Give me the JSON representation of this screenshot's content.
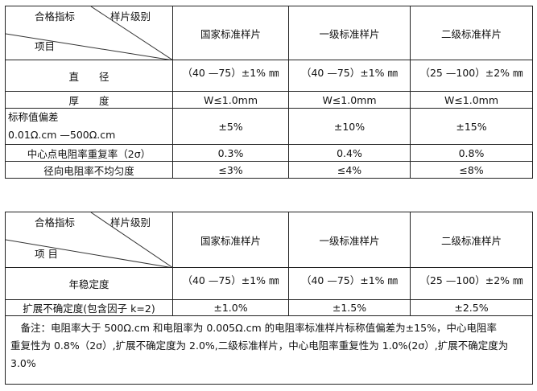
{
  "table1": {
    "header": {
      "top_left": "合格指标",
      "top_right": "样片级别",
      "bottom_left": "项目",
      "columns": [
        "国家标准样片",
        "一级标准样片",
        "二级标准样片"
      ]
    },
    "rows": [
      {
        "label": "直　　径",
        "values": [
          "（40 —75）±1% ㎜",
          "（40 —75）±1% ㎜",
          "（25 —100）±2% ㎜"
        ]
      },
      {
        "label": "厚　　度",
        "values": [
          "W≤1.0mm",
          "W≤1.0mm",
          "W≤1.0mm"
        ]
      },
      {
        "label": "标称值偏差",
        "label2": "0.01Ω.cm —500Ω.cm",
        "values": [
          "±5%",
          "±10%",
          "±15%"
        ]
      },
      {
        "label": "中心点电阻率重复率（2σ）",
        "values": [
          "0.3%",
          "0.4%",
          "0.8%"
        ]
      },
      {
        "label": "径向电阻率不均匀度",
        "values": [
          "≤3%",
          "≤4%",
          "≤8%"
        ]
      }
    ]
  },
  "table2": {
    "header": {
      "top_left": "合格指标",
      "top_right": "样片级别",
      "bottom_left": "项 目",
      "columns": [
        "国家标准样片",
        "一级标准样片",
        "二级标准样片"
      ]
    },
    "rows": [
      {
        "label": "年稳定度",
        "values": [
          "（40 —75）±1% ㎜",
          "（40 —75）±1% ㎜",
          "（25 —100）±2% ㎜"
        ]
      },
      {
        "label": "扩展不确定度(包含因子 k=2)",
        "values": [
          "±1.0%",
          "±1.5%",
          "±2.5%"
        ]
      }
    ],
    "note_line1": "　备注：电阻率大于 500Ω.cm 和电阻率为 0.005Ω.cm 的电阻率标准样片标称值偏差为±15%，中心电阻率",
    "note_line2": "重复性为 0.8%（2σ）,扩展不确定度为 2.0%,二级标准样片，中心电阻率重复性为 1.0%(2σ）,扩展不确定度为 3.0%"
  }
}
